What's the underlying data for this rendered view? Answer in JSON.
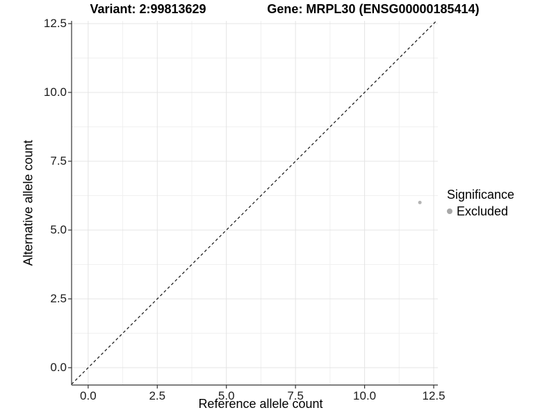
{
  "header": {
    "variant_title": "Variant: 2:99813629",
    "gene_title": "Gene: MRPL30 (ENSG00000185414)"
  },
  "chart_data": {
    "type": "scatter",
    "title": "Variant: 2:99813629  Gene: MRPL30 (ENSG00000185414)",
    "xlabel": "Reference allele count",
    "ylabel": "Alternative allele count",
    "xlim": [
      -0.6,
      12.65
    ],
    "ylim": [
      -0.63,
      12.6
    ],
    "x_ticks": [
      0,
      2.5,
      5,
      7.5,
      10,
      12.5
    ],
    "x_tick_labels": [
      "0.0",
      "2.5",
      "5.0",
      "7.5",
      "10.0",
      "12.5"
    ],
    "y_ticks": [
      0,
      2.5,
      5,
      7.5,
      10,
      12.5
    ],
    "y_tick_labels": [
      "0.0",
      "2.5",
      "5.0",
      "7.5",
      "10.0",
      "12.5"
    ],
    "grid": "major+minor",
    "abline": {
      "slope": 1,
      "intercept": 0,
      "linetype": "dashed",
      "color": "#111111"
    },
    "series": [
      {
        "name": "Excluded",
        "color": "#b4b4b4",
        "points": [
          {
            "x": 12,
            "y": 6
          }
        ]
      }
    ],
    "legend": {
      "position": "right",
      "title": "Significance",
      "entries": [
        {
          "label": "Excluded",
          "color": "#a8a8a8"
        }
      ]
    },
    "colors": {
      "grid_major": "#e4e4e4",
      "grid_minor": "#f0f0f0",
      "axis_line": "#333333",
      "tick_mark": "#333333",
      "background": "#ffffff"
    }
  }
}
